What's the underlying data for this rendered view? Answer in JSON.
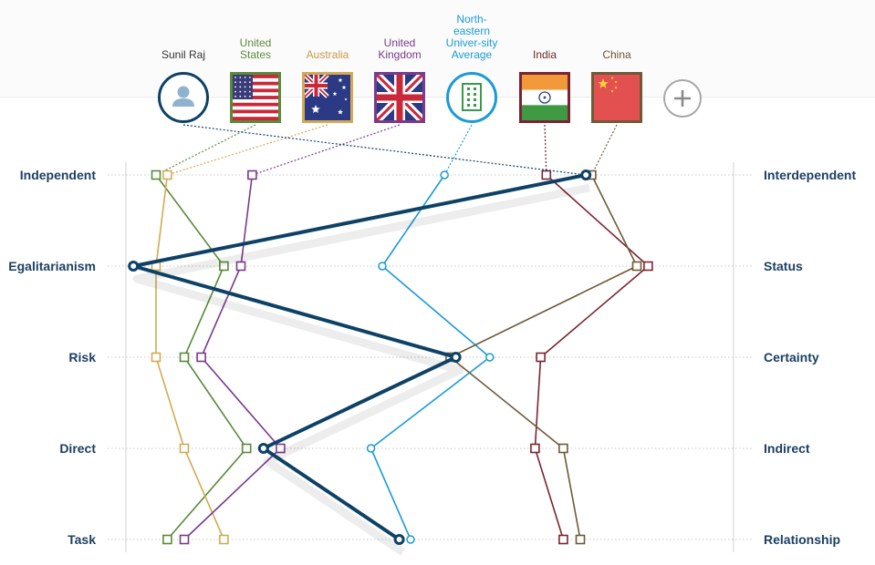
{
  "dimensions": [
    {
      "left": "Independent",
      "right": "Interdependent"
    },
    {
      "left": "Egalitarianism",
      "right": "Status"
    },
    {
      "left": "Risk",
      "right": "Certainty"
    },
    {
      "left": "Direct",
      "right": "Indirect"
    },
    {
      "left": "Task",
      "right": "Relationship"
    }
  ],
  "profiles": [
    {
      "id": "sunil",
      "label": "Sunil Raj",
      "color": "#0d4266",
      "label_color": "#333333",
      "icon": "person-icon"
    },
    {
      "id": "us",
      "label": "United States",
      "color": "#5a8a3a",
      "label_color": "#5a8a3a",
      "icon": "us-flag-icon"
    },
    {
      "id": "au",
      "label": "Australia",
      "color": "#d2aa55",
      "label_color": "#c49a48",
      "icon": "australia-flag-icon"
    },
    {
      "id": "uk",
      "label": "United Kingdom",
      "color": "#7b3a8c",
      "label_color": "#7b3a8c",
      "icon": "uk-flag-icon"
    },
    {
      "id": "neu",
      "label": "North-eastern Univer-sity Average",
      "color": "#1a9ad6",
      "label_color": "#1a9ad6",
      "icon": "building-icon"
    },
    {
      "id": "in",
      "label": "India",
      "color": "#7b2431",
      "label_color": "#6b2a2a",
      "icon": "india-flag-icon"
    },
    {
      "id": "cn",
      "label": "China",
      "color": "#6e5a36",
      "label_color": "#6b5530",
      "icon": "china-flag-icon"
    }
  ],
  "add_button": {
    "icon": "plus-icon"
  },
  "chart_data": {
    "type": "line",
    "orientation": "horizontal-profile",
    "categories": [
      "Independent / Interdependent",
      "Egalitarianism / Status",
      "Risk / Certainty",
      "Direct / Indirect",
      "Task / Relationship"
    ],
    "xlim": [
      0,
      100
    ],
    "series": [
      {
        "name": "Sunil Raj",
        "values": [
          81,
          1,
          58,
          24,
          48
        ]
      },
      {
        "name": "United States",
        "values": [
          5,
          17,
          10,
          21,
          7
        ]
      },
      {
        "name": "Australia",
        "values": [
          7,
          5,
          5,
          10,
          17
        ]
      },
      {
        "name": "United Kingdom",
        "values": [
          22,
          20,
          13,
          27,
          10
        ]
      },
      {
        "name": "North-eastern Univer-sity Average",
        "values": [
          56,
          45,
          64,
          43,
          50
        ]
      },
      {
        "name": "India",
        "values": [
          74,
          92,
          73,
          72,
          77
        ]
      },
      {
        "name": "China",
        "values": [
          82,
          90,
          57,
          77,
          80
        ]
      }
    ]
  }
}
